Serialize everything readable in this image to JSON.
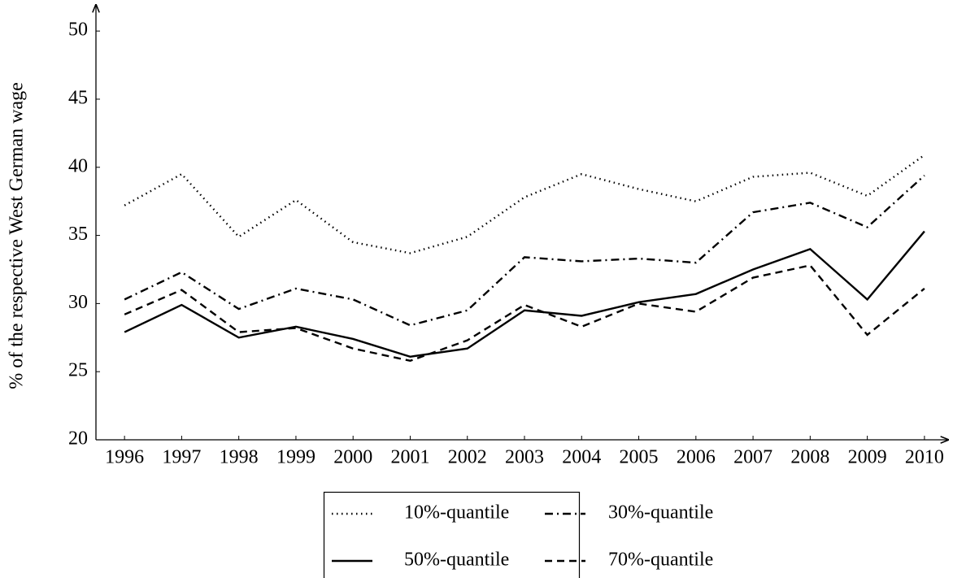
{
  "chart_data": {
    "type": "line",
    "ylabel": "% of the respective West German wage",
    "x": [
      1996,
      1997,
      1998,
      1999,
      2000,
      2001,
      2002,
      2003,
      2004,
      2005,
      2006,
      2007,
      2008,
      2009,
      2010
    ],
    "xlim": [
      1995.5,
      2010.4
    ],
    "xticks": [
      1996,
      1997,
      1998,
      1999,
      2000,
      2001,
      2002,
      2003,
      2004,
      2005,
      2006,
      2007,
      2008,
      2009,
      2010
    ],
    "ylim": [
      20,
      51.8
    ],
    "yticks": [
      20,
      25,
      30,
      35,
      40,
      45,
      50
    ],
    "series": [
      {
        "name": "10%-quantile",
        "color": "#000000",
        "dash": "dotted",
        "values": [
          37.2,
          39.5,
          34.9,
          37.6,
          34.5,
          33.7,
          34.9,
          37.8,
          39.5,
          38.4,
          37.5,
          39.3,
          39.6,
          37.9,
          40.9
        ]
      },
      {
        "name": "30%-quantile",
        "color": "#000000",
        "dash": "dashdot",
        "values": [
          30.3,
          32.3,
          29.6,
          31.1,
          30.3,
          28.4,
          29.5,
          33.4,
          33.1,
          33.3,
          33.0,
          36.7,
          37.4,
          35.6,
          39.4
        ]
      },
      {
        "name": "50%-quantile",
        "color": "#000000",
        "dash": "solid",
        "values": [
          27.9,
          29.9,
          27.5,
          28.3,
          27.4,
          26.1,
          26.7,
          29.5,
          29.1,
          30.1,
          30.7,
          32.5,
          34.0,
          30.3,
          35.3
        ]
      },
      {
        "name": "70%-quantile",
        "color": "#000000",
        "dash": "dashed",
        "values": [
          29.2,
          31.0,
          27.9,
          28.2,
          26.7,
          25.8,
          27.3,
          29.9,
          28.3,
          30.0,
          29.4,
          31.9,
          32.8,
          27.7,
          31.1
        ]
      }
    ]
  }
}
